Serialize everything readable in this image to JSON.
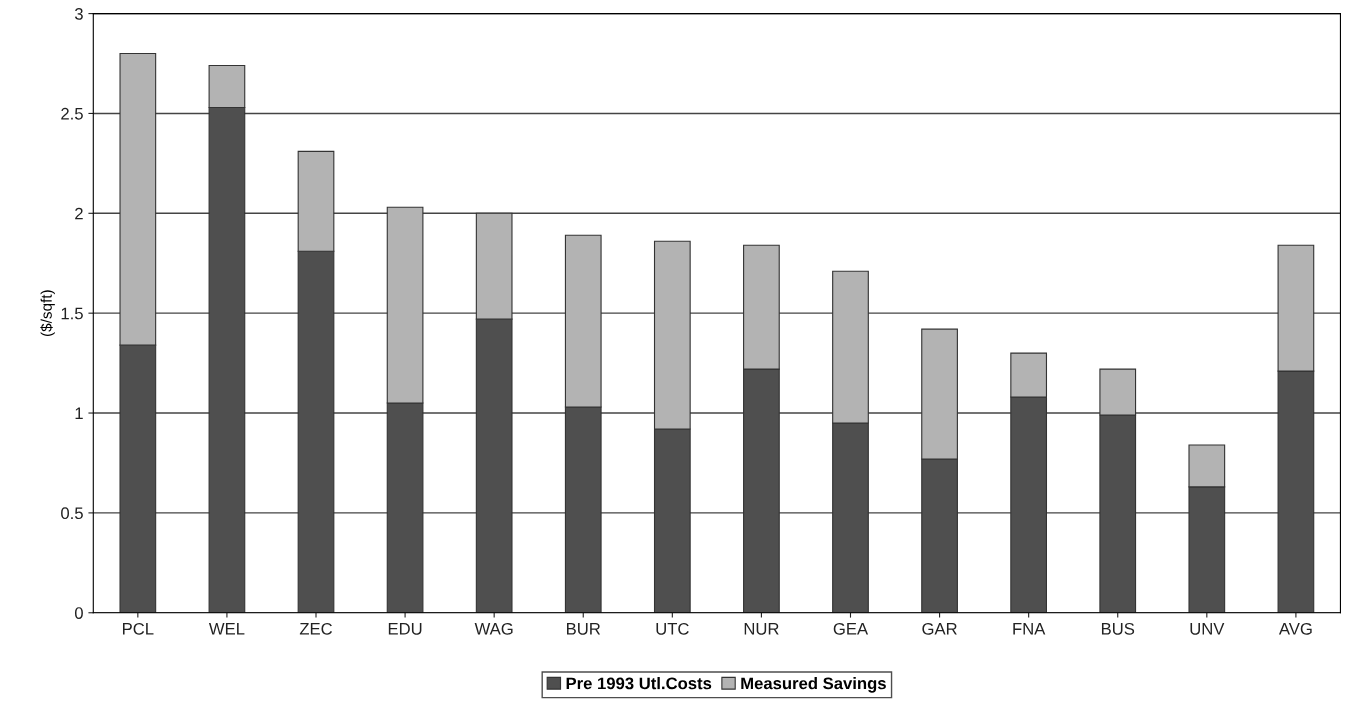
{
  "chart_data": {
    "type": "bar",
    "stacked": true,
    "ylabel": "($/sqft)",
    "categories": [
      "PCL",
      "WEL",
      "ZEC",
      "EDU",
      "WAG",
      "BUR",
      "UTC",
      "NUR",
      "GEA",
      "GAR",
      "FNA",
      "BUS",
      "UNV",
      "AVG"
    ],
    "series": [
      {
        "name": "Pre 1993 Utl.Costs",
        "color": "#4f4f4f",
        "values": [
          1.34,
          2.53,
          1.81,
          1.05,
          1.47,
          1.03,
          0.92,
          1.22,
          0.95,
          0.77,
          1.08,
          0.99,
          0.63,
          1.21
        ]
      },
      {
        "name": "Measured Savings",
        "color": "#b3b3b3",
        "values": [
          1.46,
          0.21,
          0.5,
          0.98,
          0.53,
          0.86,
          0.94,
          0.62,
          0.76,
          0.65,
          0.22,
          0.23,
          0.21,
          0.63
        ]
      }
    ],
    "ylim": [
      0,
      3
    ],
    "yticks": [
      0,
      0.5,
      1,
      1.5,
      2,
      2.5,
      3
    ],
    "grid": "y",
    "legend": "bottom"
  }
}
